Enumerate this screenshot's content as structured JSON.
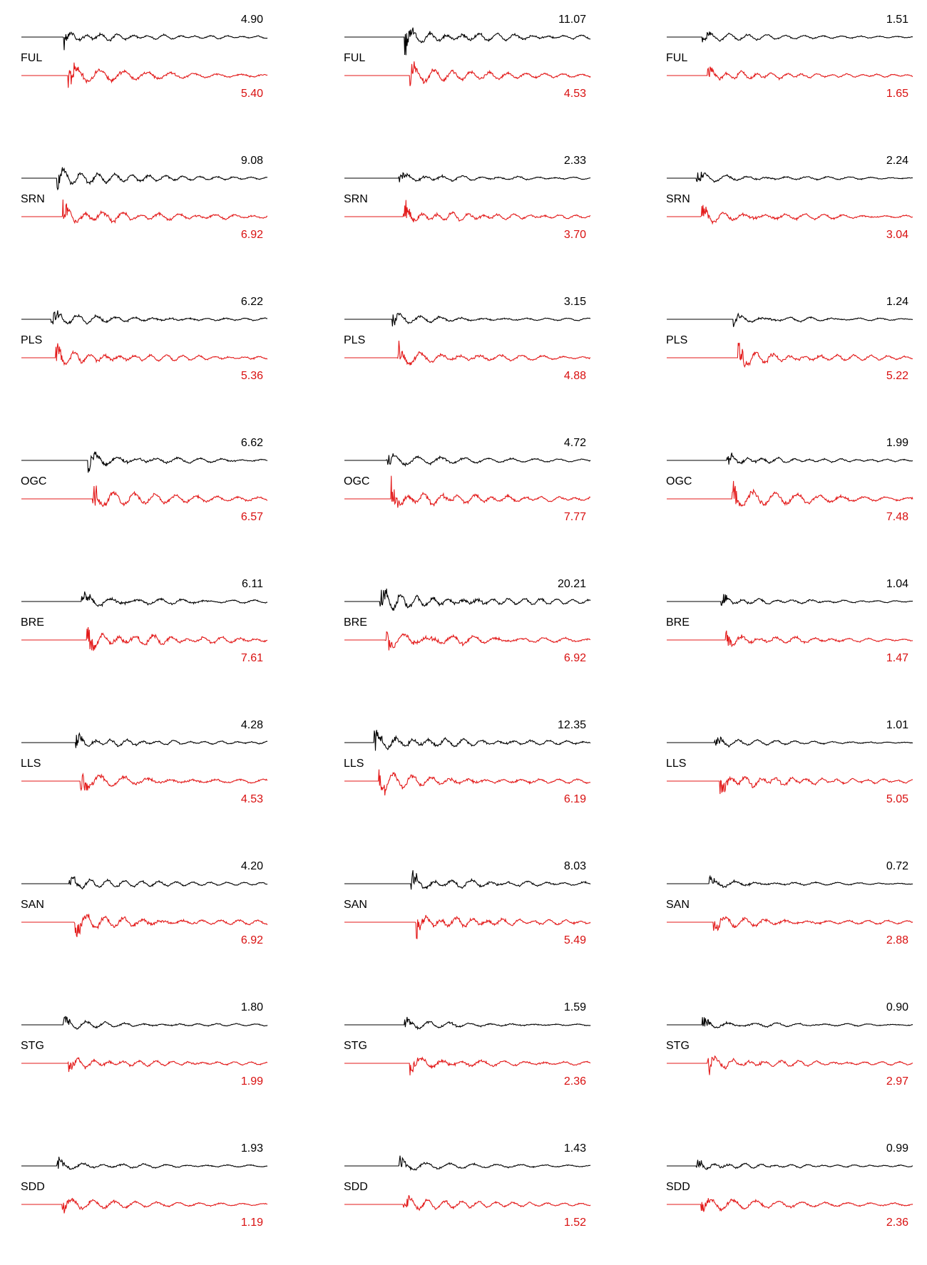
{
  "colors": {
    "observed": "#000000",
    "synthetic": "#e31a1a",
    "background": "#ffffff"
  },
  "stations": [
    "FUL",
    "SRN",
    "PLS",
    "OGC",
    "BRE",
    "LLS",
    "SAN",
    "STG",
    "SDD"
  ],
  "grid": [
    [
      {
        "obs": "4.90",
        "syn": "5.40"
      },
      {
        "obs": "11.07",
        "syn": "4.53"
      },
      {
        "obs": "1.51",
        "syn": "1.65"
      }
    ],
    [
      {
        "obs": "9.08",
        "syn": "6.92"
      },
      {
        "obs": "2.33",
        "syn": "3.70"
      },
      {
        "obs": "2.24",
        "syn": "3.04"
      }
    ],
    [
      {
        "obs": "6.22",
        "syn": "5.36"
      },
      {
        "obs": "3.15",
        "syn": "4.88"
      },
      {
        "obs": "1.24",
        "syn": "5.22"
      }
    ],
    [
      {
        "obs": "6.62",
        "syn": "6.57"
      },
      {
        "obs": "4.72",
        "syn": "7.77"
      },
      {
        "obs": "1.99",
        "syn": "7.48"
      }
    ],
    [
      {
        "obs": "6.11",
        "syn": "7.61"
      },
      {
        "obs": "20.21",
        "syn": "6.92"
      },
      {
        "obs": "1.04",
        "syn": "1.47"
      }
    ],
    [
      {
        "obs": "4.28",
        "syn": "4.53"
      },
      {
        "obs": "12.35",
        "syn": "6.19"
      },
      {
        "obs": "1.01",
        "syn": "5.05"
      }
    ],
    [
      {
        "obs": "4.20",
        "syn": "6.92"
      },
      {
        "obs": "8.03",
        "syn": "5.49"
      },
      {
        "obs": "0.72",
        "syn": "2.88"
      }
    ],
    [
      {
        "obs": "1.80",
        "syn": "1.99"
      },
      {
        "obs": "1.59",
        "syn": "2.36"
      },
      {
        "obs": "0.90",
        "syn": "2.97"
      }
    ],
    [
      {
        "obs": "1.93",
        "syn": "1.19"
      },
      {
        "obs": "1.43",
        "syn": "1.52"
      },
      {
        "obs": "0.99",
        "syn": "2.36"
      }
    ]
  ]
}
